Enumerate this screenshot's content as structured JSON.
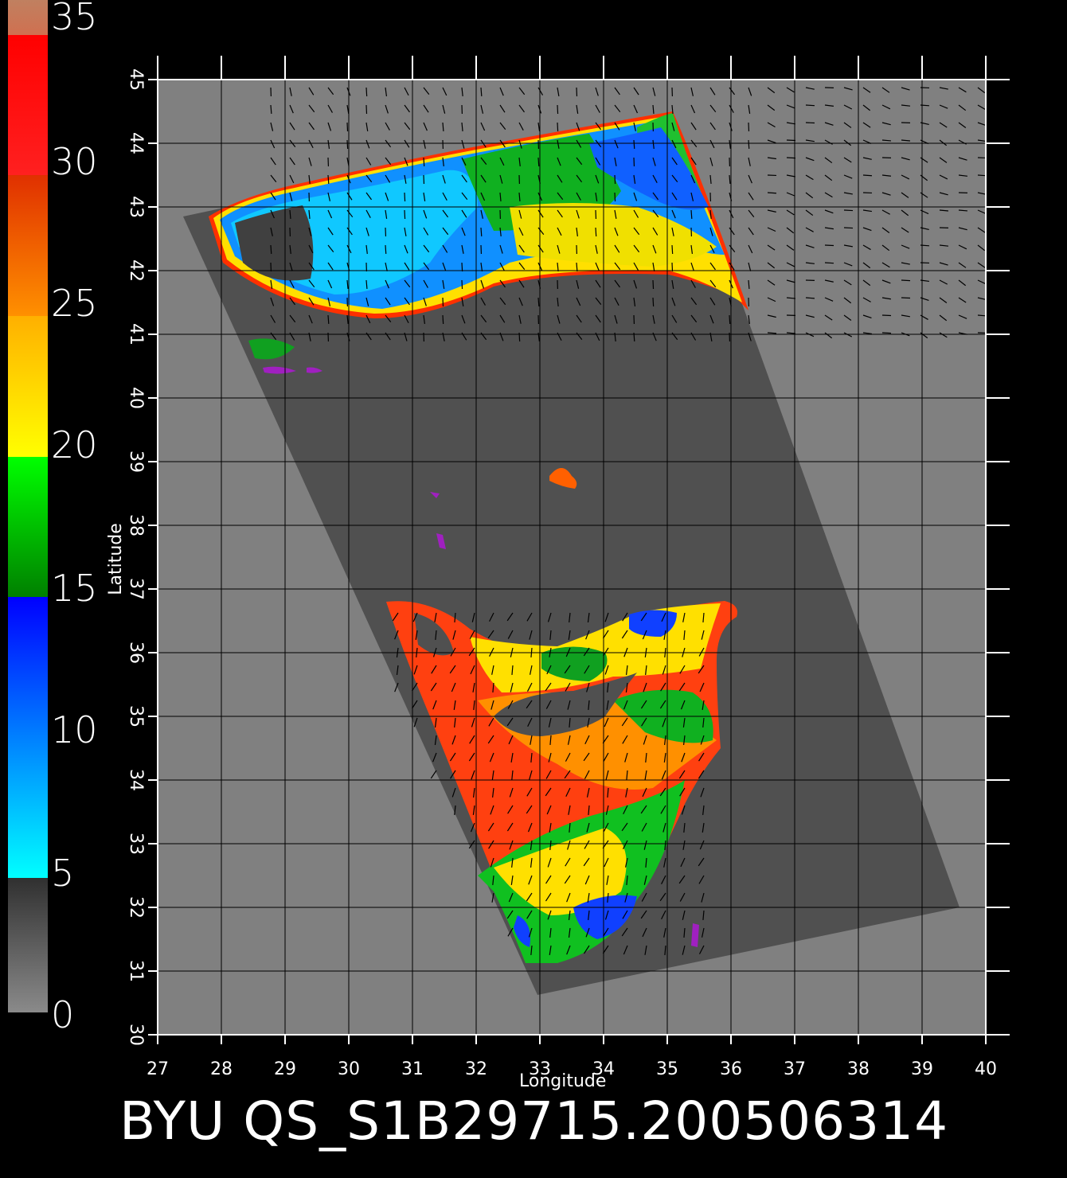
{
  "title": "BYU QS_S1B29715.200506314",
  "map": {
    "x_axis_label": "Longitude",
    "y_axis_label": "Latitude",
    "lon_range": [
      27,
      40
    ],
    "lat_range": [
      30,
      45
    ],
    "lon_ticks": [
      "27",
      "28",
      "29",
      "30",
      "31",
      "32",
      "33",
      "34",
      "35",
      "36",
      "37",
      "38",
      "39",
      "40"
    ],
    "lat_ticks": [
      "30",
      "31",
      "32",
      "33",
      "34",
      "35",
      "36",
      "37",
      "38",
      "39",
      "40",
      "41",
      "42",
      "43",
      "44",
      "45"
    ],
    "background_color": "#808080",
    "swath_color": "#505050"
  },
  "colorbar": {
    "labels": [
      "35",
      "30",
      "25",
      "20",
      "15",
      "10",
      "5",
      "0"
    ],
    "range": [
      0,
      35
    ]
  }
}
